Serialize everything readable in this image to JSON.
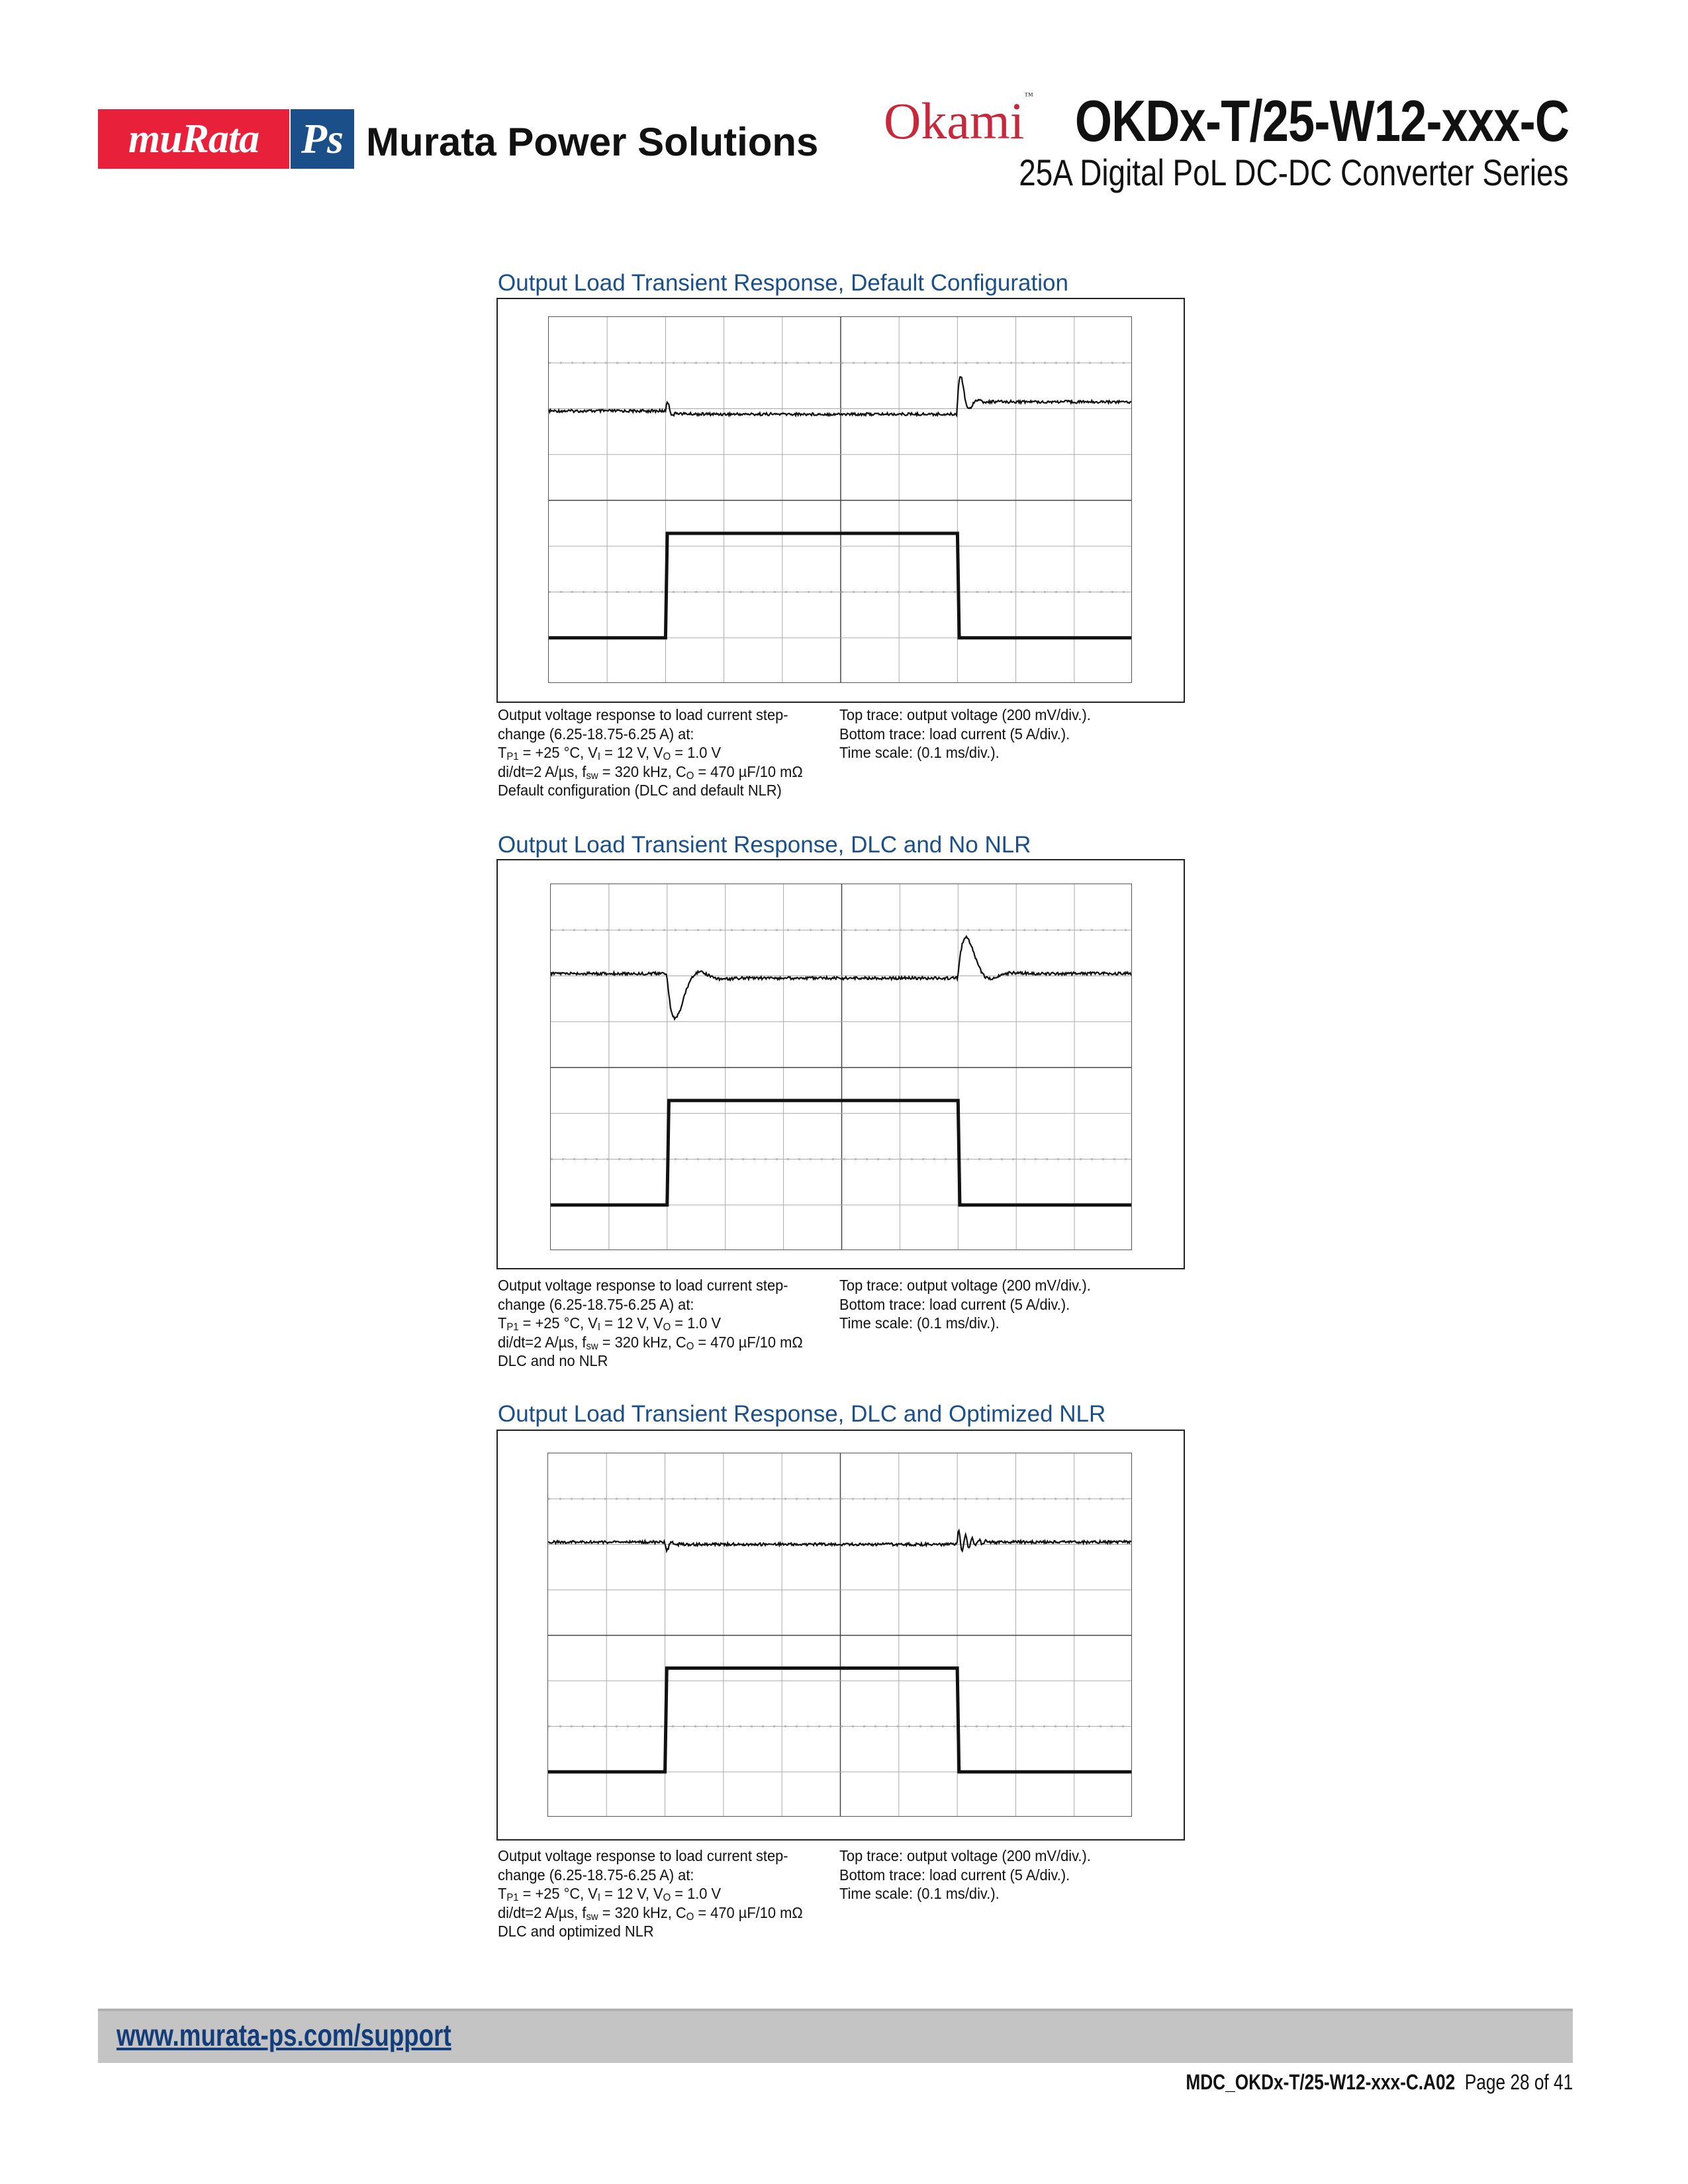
{
  "header": {
    "logo_murata": "muRata",
    "logo_ps": "Ps",
    "brand": "Murata Power Solutions",
    "okami_logo": "Okami",
    "product_title": "OKDx-T/25-W12-xxx-C",
    "product_subtitle": "25A Digital PoL DC-DC Converter Series"
  },
  "figures": [
    {
      "title": "Output Load Transient Response, Default Configuration",
      "caption_left": [
        "Output voltage response to load current step-",
        "change (6.25-18.75-6.25 A) at:",
        "T",
        "P1",
        " = +25 °C, V",
        "I",
        " = 12 V, V",
        "O",
        " = 1.0 V",
        "di/dt=2 A/µs, f",
        "sw",
        " = 320 kHz, C",
        "O",
        " = 470 µF/10 mΩ",
        "Default configuration (DLC and default NLR)"
      ],
      "caption_right": [
        "Top trace: output voltage (200 mV/div.).",
        "Bottom trace: load current (5 A/div.).",
        "Time scale: (0.1 ms/div.)."
      ],
      "scope_variant": "default"
    },
    {
      "title": "Output Load Transient Response, DLC and No NLR",
      "caption_left": [
        "Output voltage response to load current step-",
        "change (6.25-18.75-6.25 A) at:",
        "T",
        "P1",
        " = +25 °C, V",
        "I",
        " = 12 V, V",
        "O",
        " = 1.0 V",
        "di/dt=2 A/µs, f",
        "sw",
        " = 320 kHz, C",
        "O",
        " = 470 µF/10 mΩ",
        "DLC and no NLR"
      ],
      "caption_right": [
        "Top trace: output voltage (200 mV/div.).",
        "Bottom trace: load current (5 A/div.).",
        "Time scale: (0.1 ms/div.)."
      ],
      "scope_variant": "no-nlr"
    },
    {
      "title": "Output Load Transient Response, DLC and Optimized NLR",
      "caption_left": [
        "Output voltage response to load current step-",
        "change (6.25-18.75-6.25 A) at:",
        "T",
        "P1",
        " = +25 °C, V",
        "I",
        " = 12 V, V",
        "O",
        " = 1.0 V",
        "di/dt=2 A/µs, f",
        "sw",
        " = 320 kHz, C",
        "O",
        " = 470 µF/10 mΩ",
        "DLC and optimized NLR"
      ],
      "caption_right": [
        "Top trace: output voltage (200 mV/div.).",
        "Bottom trace: load current (5 A/div.).",
        "Time scale: (0.1 ms/div.)."
      ],
      "scope_variant": "optimized-nlr"
    }
  ],
  "footer": {
    "link": "www.murata-ps.com/support",
    "doc_id": "MDC_OKDx-T/25-W12-xxx-C.A02",
    "page": "Page 28 of 41"
  },
  "colors": {
    "murata_red": "#e8203a",
    "ps_blue": "#1b4f8a",
    "title_blue": "#1a4f8c",
    "footer_gray": "#c4c4c4"
  }
}
